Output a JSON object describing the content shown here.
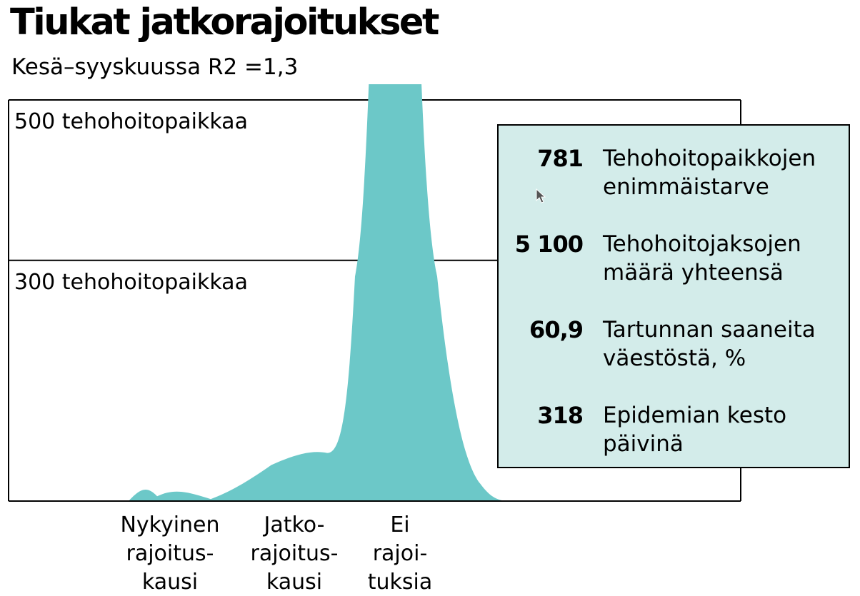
{
  "title": "Tiukat jatkorajoitukset",
  "subtitle": "Kesä–syyskuussa R2 =1,3",
  "colors": {
    "area": "#6cc8c8",
    "box_bg": "#d3ecea",
    "lines": "#000000"
  },
  "chart_data": {
    "type": "area",
    "ylim": [
      0,
      500
    ],
    "reference_lines": [
      {
        "value": 500,
        "label": "500 tehohoitopaikkaa"
      },
      {
        "value": 300,
        "label": "300 tehohoitopaikkaa"
      }
    ],
    "categories": [
      {
        "lines": [
          "Nykyinen",
          "rajoitus-",
          "kausi"
        ]
      },
      {
        "lines": [
          "Jatko-",
          "rajoitus-",
          "kausi"
        ]
      },
      {
        "lines": [
          "Ei",
          "rajoi-",
          "tuksia"
        ]
      }
    ],
    "series": [
      {
        "values": [
          6,
          20,
          25
        ]
      },
      {
        "values": [
          31,
          36,
          60
        ]
      },
      {
        "values": [
          700,
          781,
          700
        ]
      }
    ]
  },
  "stats": [
    {
      "value": "781",
      "line1": "Tehohoitopaikkojen",
      "line2": "enimmäistarve"
    },
    {
      "value": "5 100",
      "line1": "Tehohoitojaksojen",
      "line2": "määrä yhteensä"
    },
    {
      "value": "60,9",
      "line1": "Tartunnan saaneita",
      "line2": "väestöstä, %"
    },
    {
      "value": "318",
      "line1": "Epidemian kesto",
      "line2": "päivinä"
    }
  ]
}
